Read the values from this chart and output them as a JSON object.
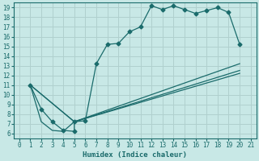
{
  "xlabel": "Humidex (Indice chaleur)",
  "bg_color": "#c8e8e6",
  "grid_color": "#b0d0ce",
  "line_color": "#1a6b6b",
  "xlim": [
    -0.5,
    21.5
  ],
  "ylim": [
    5.5,
    19.5
  ],
  "xticks": [
    0,
    1,
    2,
    3,
    4,
    5,
    6,
    7,
    8,
    9,
    10,
    11,
    12,
    13,
    14,
    15,
    16,
    17,
    18,
    19,
    20,
    21
  ],
  "yticks": [
    6,
    7,
    8,
    9,
    10,
    11,
    12,
    13,
    14,
    15,
    16,
    17,
    18,
    19
  ],
  "line1_x": [
    1,
    2,
    3,
    4,
    5,
    5,
    6,
    7,
    8,
    9,
    10,
    11,
    12,
    13,
    14,
    15,
    16,
    17,
    18,
    19,
    20
  ],
  "line1_y": [
    11,
    8.5,
    7.2,
    6.3,
    6.2,
    7.2,
    7.3,
    13.2,
    15.2,
    15.3,
    16.5,
    17.0,
    19.2,
    18.8,
    19.2,
    18.8,
    18.4,
    18.7,
    19.0,
    18.5,
    15.2
  ],
  "line2_x": [
    1,
    2,
    3,
    4,
    5,
    20
  ],
  "line2_y": [
    11,
    7.2,
    6.3,
    6.2,
    7.2,
    12.5
  ],
  "line3_x": [
    1,
    5,
    20
  ],
  "line3_y": [
    11,
    7.2,
    13.2
  ],
  "line4_x": [
    1,
    5,
    20
  ],
  "line4_y": [
    11,
    7.2,
    12.2
  ]
}
